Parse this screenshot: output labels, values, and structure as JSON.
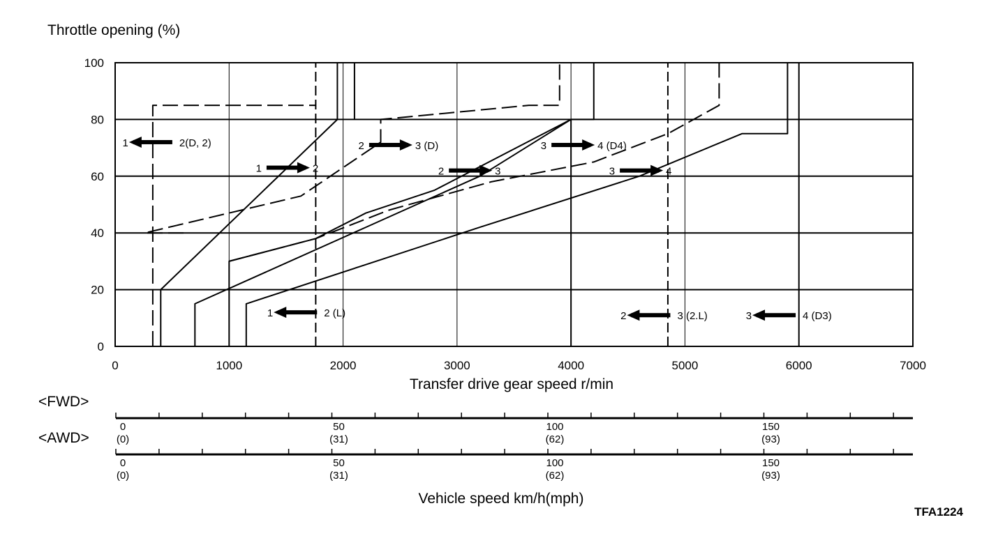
{
  "chart_data": {
    "type": "line",
    "ylabel": "Throttle opening (%)",
    "xlabel": "Transfer drive gear speed r/min",
    "xlim": [
      0,
      7000
    ],
    "ylim": [
      0,
      100
    ],
    "x_ticks": [
      0,
      1000,
      2000,
      3000,
      4000,
      5000,
      6000,
      7000
    ],
    "y_ticks": [
      0,
      20,
      40,
      60,
      80,
      100
    ],
    "grid": true,
    "series": [
      {
        "style": "solid",
        "points": [
          [
            400,
            0
          ],
          [
            400,
            20
          ],
          [
            1950,
            80
          ],
          [
            1950,
            100
          ]
        ]
      },
      {
        "style": "dashed",
        "points": [
          [
            330,
            0
          ],
          [
            330,
            85
          ],
          [
            1760,
            85
          ]
        ]
      },
      {
        "style": "dashed",
        "points": [
          [
            600,
            40
          ],
          [
            260,
            40
          ],
          [
            1630,
            53
          ],
          [
            2330,
            72
          ],
          [
            2330,
            80
          ],
          [
            3630,
            85
          ],
          [
            3900,
            85
          ],
          [
            3900,
            100
          ]
        ]
      },
      {
        "style": "solid",
        "points": [
          [
            1000,
            0
          ],
          [
            1000,
            30
          ],
          [
            1760,
            38
          ],
          [
            2200,
            47
          ],
          [
            2800,
            55
          ],
          [
            4000,
            80
          ]
        ]
      },
      {
        "style": "dashed",
        "points": [
          [
            1000,
            30
          ],
          [
            1760,
            38
          ],
          [
            2400,
            48
          ],
          [
            3300,
            58
          ],
          [
            4200,
            65
          ],
          [
            4850,
            75
          ],
          [
            5300,
            85
          ],
          [
            5300,
            100
          ]
        ]
      },
      {
        "style": "solid",
        "points": [
          [
            700,
            0
          ],
          [
            700,
            15
          ],
          [
            2200,
            42
          ],
          [
            3200,
            60
          ],
          [
            4000,
            80
          ],
          [
            4200,
            80
          ],
          [
            4200,
            100
          ]
        ]
      },
      {
        "style": "solid",
        "points": [
          [
            1150,
            0
          ],
          [
            1150,
            15
          ],
          [
            3200,
            42
          ],
          [
            4600,
            60
          ],
          [
            5500,
            75
          ],
          [
            5900,
            75
          ],
          [
            5900,
            100
          ]
        ]
      }
    ],
    "verticals": [
      {
        "style": "dashed",
        "x": 1760,
        "range": [
          0,
          100
        ]
      },
      {
        "style": "solid",
        "x": 2100,
        "range": [
          80,
          100
        ]
      },
      {
        "style": "dashed",
        "x": 4850,
        "range": [
          0,
          100
        ]
      },
      {
        "style": "solid",
        "x": 4000,
        "range": [
          0,
          80
        ]
      },
      {
        "style": "solid",
        "x": 6000,
        "range": [
          0,
          100
        ]
      }
    ],
    "annotations": [
      {
        "from": "1",
        "to": "2(D, 2)",
        "x": 330,
        "y": 72,
        "dir": "left"
      },
      {
        "from": "2",
        "to": "3 (D)",
        "x": 2400,
        "y": 71,
        "dir": "right"
      },
      {
        "from": "3",
        "to": "4 (D4)",
        "x": 4000,
        "y": 71,
        "dir": "right"
      },
      {
        "from": "1",
        "to": "2",
        "x": 1500,
        "y": 63,
        "dir": "right"
      },
      {
        "from": "2",
        "to": "3",
        "x": 3100,
        "y": 62,
        "dir": "right"
      },
      {
        "from": "3",
        "to": "4",
        "x": 4600,
        "y": 62,
        "dir": "right"
      },
      {
        "from": "1",
        "to": "2 (L)",
        "x": 1600,
        "y": 12,
        "dir": "left"
      },
      {
        "from": "2",
        "to": "3 (2.L)",
        "x": 4700,
        "y": 11,
        "dir": "left"
      },
      {
        "from": "3",
        "to": "4 (D3)",
        "x": 5800,
        "y": 11,
        "dir": "left"
      }
    ]
  },
  "speed_scales": {
    "title": "Vehicle speed km/h(mph)",
    "fwd": {
      "label": "<FWD>",
      "ticks": [
        {
          "kmh": "0",
          "mph": "(0)"
        },
        {
          "kmh": "50",
          "mph": "(31)"
        },
        {
          "kmh": "100",
          "mph": "(62)"
        },
        {
          "kmh": "150",
          "mph": "(93)"
        }
      ]
    },
    "awd": {
      "label": "<AWD>",
      "ticks": [
        {
          "kmh": "0",
          "mph": "(0)"
        },
        {
          "kmh": "50",
          "mph": "(31)"
        },
        {
          "kmh": "100",
          "mph": "(62)"
        },
        {
          "kmh": "150",
          "mph": "(93)"
        }
      ]
    }
  },
  "figure_code": "TFA1224"
}
